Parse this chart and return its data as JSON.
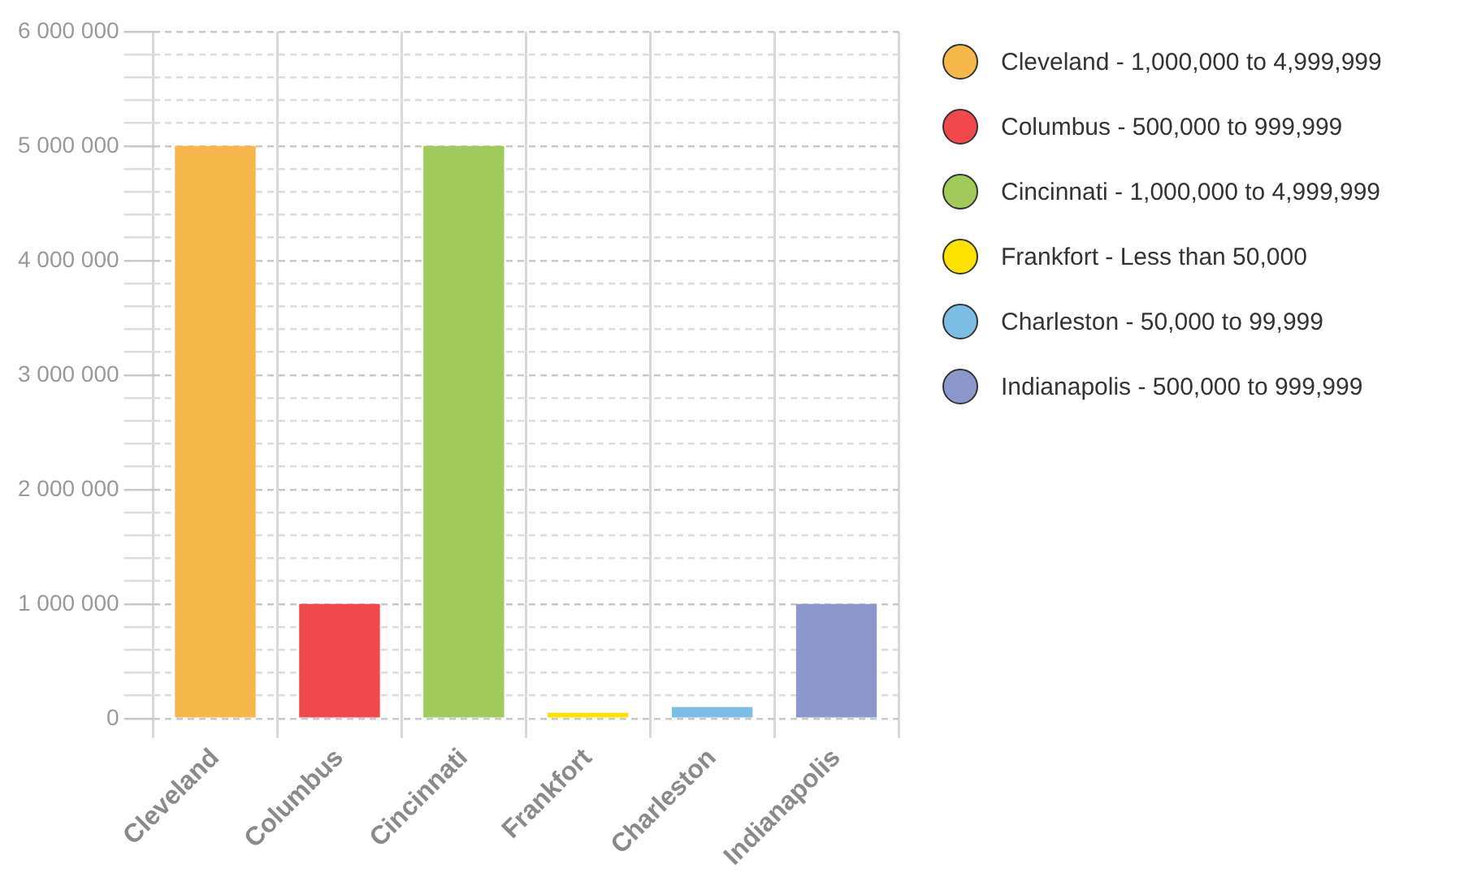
{
  "chart_data": {
    "type": "bar",
    "categories": [
      "Cleveland",
      "Columbus",
      "Cincinnati",
      "Frankfort",
      "Charleston",
      "Indianapolis"
    ],
    "series": [
      {
        "name": "Cleveland - 1,000,000 to 4,999,999",
        "color": "#f7b84b",
        "values": [
          5000000,
          null,
          null,
          null,
          null,
          null
        ]
      },
      {
        "name": "Columbus - 500,000 to 999,999",
        "color": "#f0484b",
        "values": [
          null,
          1000000,
          null,
          null,
          null,
          null
        ]
      },
      {
        "name": "Cincinnati - 1,000,000 to 4,999,999",
        "color": "#a0cb5a",
        "values": [
          null,
          null,
          5000000,
          null,
          null,
          null
        ]
      },
      {
        "name": "Frankfort - Less than 50,000",
        "color": "#fde200",
        "values": [
          null,
          null,
          null,
          50000,
          null,
          null
        ]
      },
      {
        "name": "Charleston - 50,000 to 99,999",
        "color": "#7bbde3",
        "values": [
          null,
          null,
          null,
          null,
          100000,
          null
        ]
      },
      {
        "name": "Indianapolis - 500,000 to 999,999",
        "color": "#8c98cb",
        "values": [
          null,
          null,
          null,
          null,
          null,
          1000000
        ]
      }
    ],
    "ylim": [
      0,
      6000000
    ],
    "yticks": [
      {
        "value": 0,
        "label": "0"
      },
      {
        "value": 200000,
        "label": null
      },
      {
        "value": 400000,
        "label": null
      },
      {
        "value": 600000,
        "label": null
      },
      {
        "value": 800000,
        "label": null
      },
      {
        "value": 1000000,
        "label": "1 000 000"
      },
      {
        "value": 1200000,
        "label": null
      },
      {
        "value": 1400000,
        "label": null
      },
      {
        "value": 1600000,
        "label": null
      },
      {
        "value": 1800000,
        "label": null
      },
      {
        "value": 2000000,
        "label": "2 000 000"
      },
      {
        "value": 2200000,
        "label": null
      },
      {
        "value": 2400000,
        "label": null
      },
      {
        "value": 2600000,
        "label": null
      },
      {
        "value": 2800000,
        "label": null
      },
      {
        "value": 3000000,
        "label": "3 000 000"
      },
      {
        "value": 3200000,
        "label": null
      },
      {
        "value": 3400000,
        "label": null
      },
      {
        "value": 3600000,
        "label": null
      },
      {
        "value": 3800000,
        "label": null
      },
      {
        "value": 4000000,
        "label": "4 000 000"
      },
      {
        "value": 4200000,
        "label": null
      },
      {
        "value": 4400000,
        "label": null
      },
      {
        "value": 4600000,
        "label": null
      },
      {
        "value": 4800000,
        "label": null
      },
      {
        "value": 5000000,
        "label": "5 000 000"
      },
      {
        "value": 5200000,
        "label": null
      },
      {
        "value": 5400000,
        "label": null
      },
      {
        "value": 5600000,
        "label": null
      },
      {
        "value": 5800000,
        "label": null
      },
      {
        "value": 6000000,
        "label": "6 000 000"
      }
    ],
    "grid": true,
    "legend": "right"
  }
}
